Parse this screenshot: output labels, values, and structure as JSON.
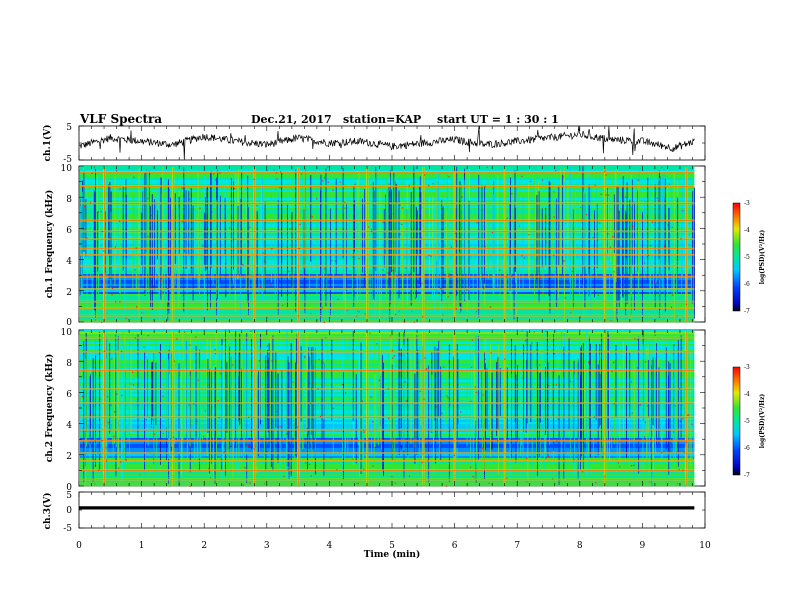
{
  "header": {
    "title": "VLF Spectra",
    "date": "Dec.21, 2017",
    "station": "station=KAP",
    "start": "start  UT =   1 : 30 : 1"
  },
  "colors": {
    "spectrogram_low": "#0000b4",
    "spectrogram_mid": "#00e6e6",
    "spectrogram_high": "#ff0000",
    "trace": "#000000"
  },
  "chart_data": [
    {
      "type": "line",
      "name": "ch1-waveform",
      "ylabel": "ch.1(V)",
      "ylim": [
        -5,
        5
      ],
      "yticks": [
        "5",
        "-5"
      ],
      "x_range_min": [
        0,
        9.83
      ],
      "description_of_values": "noisy waveform hovering roughly between -2.5 and 2.5 V",
      "x": [
        0,
        0.5,
        1.0,
        1.5,
        2.0,
        2.5,
        3.0,
        3.5,
        4.0,
        4.5,
        5.0,
        5.5,
        6.0,
        6.5,
        7.0,
        7.5,
        8.0,
        8.5,
        9.0,
        9.5,
        9.83
      ],
      "values": [
        -1.0,
        1.5,
        0.5,
        -0.5,
        2.0,
        0.5,
        -0.5,
        1.5,
        0.0,
        0.5,
        -1.0,
        0.0,
        1.0,
        -0.5,
        0.5,
        1.5,
        2.5,
        1.0,
        0.5,
        -1.5,
        0.5
      ]
    },
    {
      "type": "heatmap",
      "name": "ch1-spectrogram",
      "ylabel": "ch.1  Frequency (kHz)",
      "ylim": [
        0,
        10
      ],
      "yticks": [
        "0",
        "2",
        "4",
        "6",
        "8",
        "10"
      ],
      "x_range_min": [
        0,
        9.83
      ],
      "colorbar": {
        "label": "log(PSD)(V²/Hz)",
        "range": [
          -7,
          -3
        ],
        "ticks": [
          "-3",
          "-4",
          "-5",
          "-6",
          "-7"
        ]
      },
      "intense_freq_bands_khz": [
        0.4,
        0.9,
        1.3,
        2.1,
        2.9,
        3.6,
        4.3,
        4.7,
        5.3,
        5.8,
        6.5,
        7.6,
        8.7,
        9.6
      ],
      "intense_time_bands_min": [
        0.4,
        1.5,
        2.8,
        3.5,
        4.6,
        5.5,
        6.0,
        6.8,
        8.4,
        9.7
      ]
    },
    {
      "type": "heatmap",
      "name": "ch2-spectrogram",
      "ylabel": "ch.2  Frequency (kHz)",
      "ylim": [
        0,
        10
      ],
      "yticks": [
        "0",
        "2",
        "4",
        "6",
        "8",
        "10"
      ],
      "x_range_min": [
        0,
        9.83
      ],
      "colorbar": {
        "label": "log(PSD)(V²/Hz)",
        "range": [
          -7,
          -3
        ],
        "ticks": [
          "-3",
          "-4",
          "-5",
          "-6",
          "-7"
        ]
      },
      "intense_freq_bands_khz": [
        0.4,
        1.0,
        1.6,
        2.1,
        2.9,
        3.6,
        4.4,
        5.3,
        6.2,
        7.4,
        8.6,
        9.5
      ],
      "intense_time_bands_min": [
        0.4,
        1.5,
        2.8,
        3.5,
        4.6,
        5.5,
        6.0,
        6.8,
        8.4,
        9.7
      ]
    },
    {
      "type": "line",
      "name": "ch3-waveform",
      "ylabel": "ch.3(V)",
      "xlabel": "Time  (min)",
      "ylim": [
        -5,
        5
      ],
      "yticks": [
        "5",
        "0",
        "-5"
      ],
      "xlim": [
        0,
        10
      ],
      "xticks": [
        "0",
        "1",
        "2",
        "3",
        "4",
        "5",
        "6",
        "7",
        "8",
        "9",
        "10"
      ],
      "x": [
        0,
        9.83
      ],
      "values": [
        0.6,
        0.6
      ]
    }
  ]
}
